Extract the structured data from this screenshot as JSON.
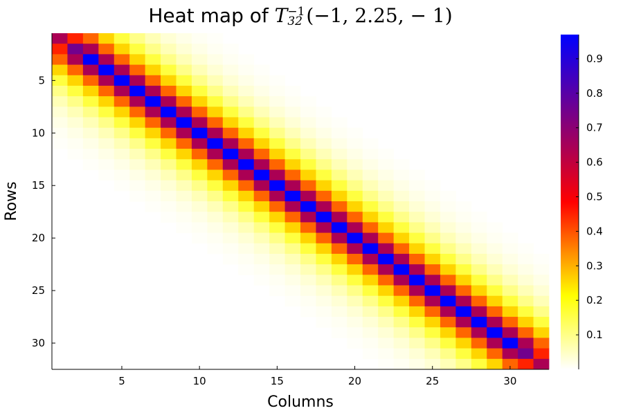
{
  "chart_data": {
    "type": "heatmap",
    "title_prefix": "Heat map of ",
    "title_math": {
      "symbol": "T",
      "superscript": "−1",
      "subscript": "32",
      "args": "(−1, 2.25, − 1)"
    },
    "xlabel": "Columns",
    "ylabel": "Rows",
    "n": 32,
    "x_ticks": [
      5,
      10,
      15,
      20,
      25,
      30
    ],
    "y_ticks": [
      5,
      10,
      15,
      20,
      25,
      30
    ],
    "xlim": [
      0.5,
      32.5
    ],
    "ylim": [
      0.5,
      32.5
    ],
    "y_axis_inverted": true,
    "matrix_rule": "value(i,j) = diagonal_profile[|i-j|] * edge_factor; 0 beyond listed offsets",
    "diagonal_profile": [
      0.97,
      0.64,
      0.38,
      0.26,
      0.16,
      0.1,
      0.06,
      0.035,
      0.02,
      0.01,
      0.005
    ],
    "edge_entries": {
      "corner_diagonal": 0.64,
      "corner_offdiag": 0.45,
      "second_diagonal": 0.75
    },
    "colorbar": {
      "range": [
        0.0,
        0.97
      ],
      "ticks": [
        0.1,
        0.2,
        0.3,
        0.4,
        0.5,
        0.6,
        0.7,
        0.8,
        0.9
      ],
      "tick_labels": [
        "0.1",
        "0.2",
        "0.3",
        "0.4",
        "0.5",
        "0.6",
        "0.7",
        "0.8",
        "0.9"
      ],
      "colormap": [
        "#ffffff",
        "#ffff00",
        "#ff8c00",
        "#ff0000",
        "#b0004f",
        "#0000ff"
      ],
      "colormap_stops": [
        0.0,
        0.22,
        0.35,
        0.5,
        0.65,
        1.0
      ]
    },
    "grid": false,
    "legend": "none"
  }
}
